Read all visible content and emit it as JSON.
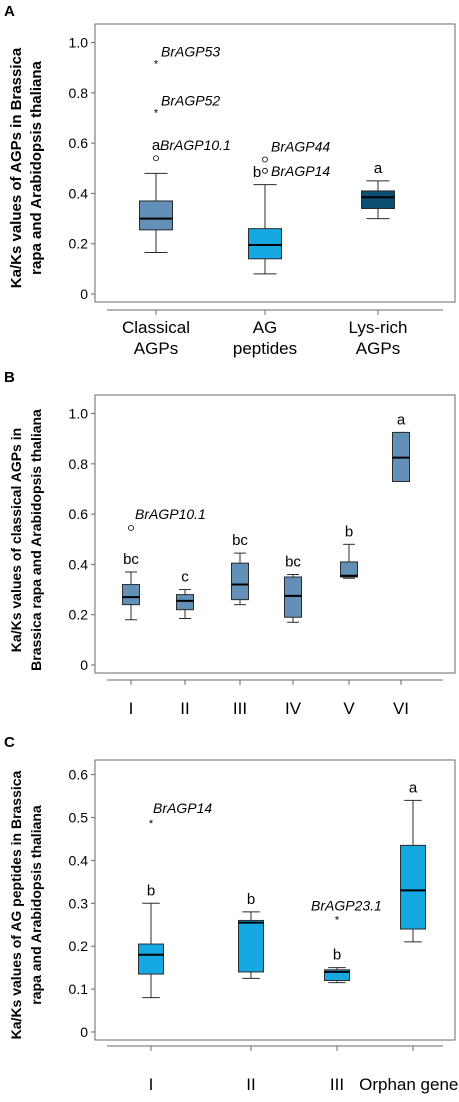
{
  "chart_data": [
    {
      "type": "box",
      "panel": "A",
      "ylabel_line1": "Ka/Ks values of AGPs in Brassica",
      "ylabel_line2": "rapa and Arabidopsis thaliana",
      "ylim": [
        0,
        1.05
      ],
      "yticks": [
        0,
        0.2,
        0.4,
        0.6,
        0.8,
        1.0
      ],
      "ytick_labels": [
        "0",
        "0.2",
        "0.4",
        "0.6",
        "0.8",
        "1.0"
      ],
      "categories": [
        {
          "label": [
            "Classical",
            "AGPs"
          ],
          "min": 0.165,
          "q1": 0.255,
          "median": 0.3,
          "q3": 0.37,
          "max": 0.48,
          "letter": "a",
          "color": "#6390b8",
          "outliers": [
            {
              "value": 0.92,
              "symbol": "*",
              "name": "BrAGP53"
            },
            {
              "value": 0.725,
              "symbol": "*",
              "name": "BrAGP52"
            },
            {
              "value": 0.54,
              "symbol": "o",
              "name": "BrAGP10.1"
            }
          ]
        },
        {
          "label": [
            "AG",
            "peptides"
          ],
          "min": 0.08,
          "q1": 0.14,
          "median": 0.195,
          "q3": 0.26,
          "max": 0.435,
          "letter": "b",
          "color": "#16a8e3",
          "outliers": [
            {
              "value": 0.535,
              "symbol": "o",
              "name": "BrAGP44"
            },
            {
              "value": 0.49,
              "symbol": "o",
              "name": "BrAGP14"
            }
          ]
        },
        {
          "label": [
            "Lys-rich",
            "AGPs"
          ],
          "min": 0.3,
          "q1": 0.34,
          "median": 0.385,
          "q3": 0.41,
          "max": 0.45,
          "letter": "a",
          "color": "#0c4f73",
          "outliers": []
        }
      ]
    },
    {
      "type": "box",
      "panel": "B",
      "ylabel_line1": "Ka/Ks values of classical AGPs in",
      "ylabel_line2": "Brassica rapa and Arabidopsis thaliana",
      "ylim": [
        0,
        1.05
      ],
      "yticks": [
        0,
        0.2,
        0.4,
        0.6,
        0.8,
        1.0
      ],
      "ytick_labels": [
        "0",
        "0.2",
        "0.4",
        "0.6",
        "0.8",
        "1.0"
      ],
      "categories": [
        {
          "label": [
            "I"
          ],
          "min": 0.18,
          "q1": 0.24,
          "median": 0.27,
          "q3": 0.32,
          "max": 0.37,
          "letter": "bc",
          "color": "#6390b8",
          "outliers": [
            {
              "value": 0.545,
              "symbol": "o",
              "name": "BrAGP10.1"
            }
          ]
        },
        {
          "label": [
            "II"
          ],
          "min": 0.185,
          "q1": 0.22,
          "median": 0.255,
          "q3": 0.28,
          "max": 0.3,
          "letter": "c",
          "color": "#6390b8",
          "outliers": []
        },
        {
          "label": [
            "III"
          ],
          "min": 0.24,
          "q1": 0.26,
          "median": 0.32,
          "q3": 0.405,
          "max": 0.445,
          "letter": "bc",
          "color": "#6390b8",
          "outliers": []
        },
        {
          "label": [
            "IV"
          ],
          "min": 0.17,
          "q1": 0.19,
          "median": 0.275,
          "q3": 0.35,
          "max": 0.36,
          "letter": "bc",
          "color": "#6390b8",
          "outliers": []
        },
        {
          "label": [
            "V"
          ],
          "min": 0.345,
          "q1": 0.35,
          "median": 0.355,
          "q3": 0.41,
          "max": 0.48,
          "letter": "b",
          "color": "#6390b8",
          "outliers": []
        },
        {
          "label": [
            "VI"
          ],
          "min": 0.73,
          "q1": 0.73,
          "median": 0.825,
          "q3": 0.925,
          "max": 0.925,
          "letter": "a",
          "color": "#6390b8",
          "outliers": []
        }
      ]
    },
    {
      "type": "box",
      "panel": "C",
      "ylabel_line1": "Ka/Ks values of AG peptides in Brassica",
      "ylabel_line2": "rapa and Arabidopsis thaliana",
      "ylim": [
        0,
        0.62
      ],
      "yticks": [
        0,
        0.1,
        0.2,
        0.3,
        0.4,
        0.5,
        0.6
      ],
      "ytick_labels": [
        "0",
        "0.1",
        "0.2",
        "0.3",
        "0.4",
        "0.5",
        "0.6"
      ],
      "categories": [
        {
          "label": [
            "I"
          ],
          "min": 0.08,
          "q1": 0.135,
          "median": 0.18,
          "q3": 0.205,
          "max": 0.3,
          "letter": "b",
          "color": "#16a8e3",
          "outliers": [
            {
              "value": 0.49,
              "symbol": "*",
              "name": "BrAGP14"
            }
          ]
        },
        {
          "label": [
            "II"
          ],
          "min": 0.125,
          "q1": 0.14,
          "median": 0.255,
          "q3": 0.26,
          "max": 0.28,
          "letter": "b",
          "color": "#16a8e3",
          "outliers": []
        },
        {
          "label": [
            "III"
          ],
          "min": 0.115,
          "q1": 0.12,
          "median": 0.14,
          "q3": 0.145,
          "max": 0.15,
          "letter": "b",
          "color": "#16a8e3",
          "outliers": [
            {
              "value": 0.265,
              "symbol": "*",
              "name": "BrAGP23.1"
            }
          ]
        },
        {
          "label": [
            "Orphan genes"
          ],
          "min": 0.21,
          "q1": 0.24,
          "median": 0.33,
          "q3": 0.435,
          "max": 0.54,
          "letter": "a",
          "color": "#16a8e3",
          "outliers": []
        }
      ]
    }
  ]
}
